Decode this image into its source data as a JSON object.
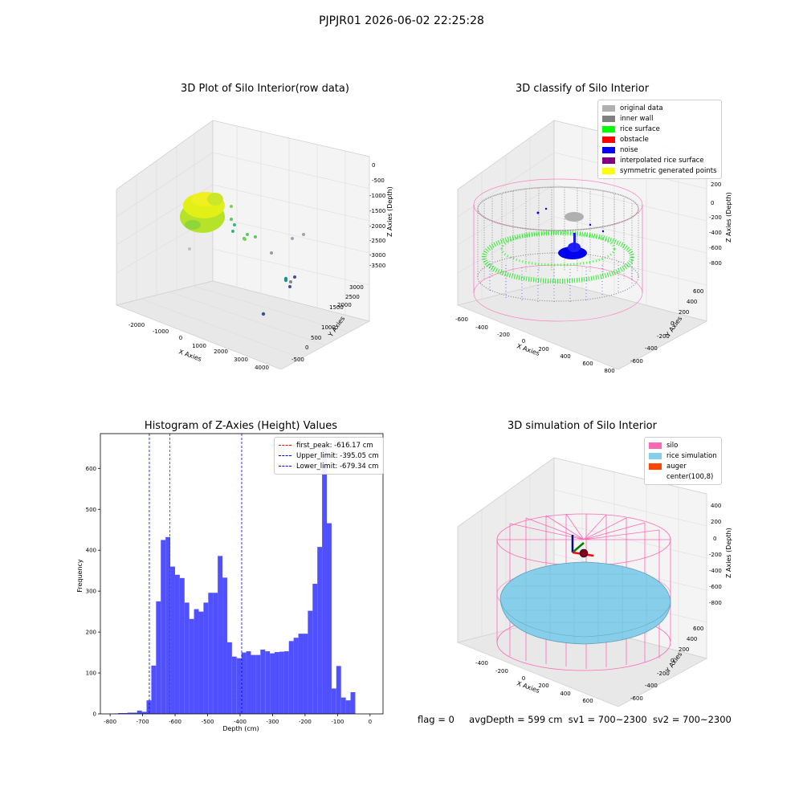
{
  "suptitle": "PJPJR01 2026-06-02 22:25:28",
  "panels": {
    "raw": {
      "title": "3D Plot of Silo Interior(row data)",
      "xlabel": "X Axies",
      "ylabel": "Y Axies",
      "zlabel": "Z Axies (Depth)",
      "xticks": [
        "-2000",
        "-1000",
        "0",
        "1000",
        "2000",
        "3000",
        "4000"
      ],
      "yticks": [
        "-500",
        "0",
        "500",
        "1000",
        "1500",
        "2000",
        "2500",
        "3000"
      ],
      "zticks": [
        "0",
        "-500",
        "-1000",
        "-1500",
        "-2000",
        "-2500",
        "-3000",
        "-3500"
      ]
    },
    "classify": {
      "title": "3D classify of Silo Interior",
      "xlabel": "X Axies",
      "ylabel": "Y Axies",
      "zlabel": "Z Axies (Depth)",
      "xticks": [
        "-600",
        "-400",
        "-200",
        "0",
        "200",
        "400",
        "600",
        "800"
      ],
      "yticks": [
        "-600",
        "-400",
        "-200",
        "0",
        "200",
        "400",
        "600"
      ],
      "zticks": [
        "200",
        "0",
        "-200",
        "-400",
        "-600",
        "-800"
      ],
      "legend": [
        {
          "label": "original data",
          "color": "#b0b0b0"
        },
        {
          "label": "inner wall",
          "color": "#808080"
        },
        {
          "label": "rice surface",
          "color": "#00ff00"
        },
        {
          "label": "obstacle",
          "color": "#ff0000"
        },
        {
          "label": "noise",
          "color": "#0000ff"
        },
        {
          "label": "interpolated rice surface",
          "color": "#800080"
        },
        {
          "label": "symmetric generated points",
          "color": "#ffff00"
        }
      ]
    },
    "simulation": {
      "title": "3D simulation of Silo Interior",
      "xlabel": "X Axies",
      "ylabel": "Y Axies",
      "zlabel": "Z Axies (Depth)",
      "xticks": [
        "-400",
        "-200",
        "0",
        "200",
        "400",
        "600"
      ],
      "yticks": [
        "-600",
        "-400",
        "-200",
        "0",
        "200",
        "400",
        "600"
      ],
      "zticks": [
        "400",
        "200",
        "0",
        "-200",
        "-400",
        "-600",
        "-800"
      ],
      "legend": [
        {
          "label": "silo",
          "color": "#ff69b4"
        },
        {
          "label": "rice simulation",
          "color": "#87ceeb"
        },
        {
          "label": "auger",
          "color": "#ff4500"
        },
        {
          "label": "center(100,8)",
          "color": "#ffffff"
        }
      ]
    }
  },
  "chart_data": {
    "type": "bar",
    "title": "Histogram of Z-Axies (Height) Values",
    "xlabel": "Depth (cm)",
    "ylabel": "Frequency",
    "xlim": [
      -830,
      40
    ],
    "ylim": [
      0,
      685
    ],
    "xticks": [
      -800,
      -700,
      -600,
      -500,
      -400,
      -300,
      -200,
      -100,
      0
    ],
    "yticks": [
      0,
      100,
      200,
      300,
      400,
      500,
      600
    ],
    "bin_start": -790,
    "bin_width": 14.6,
    "counts": [
      1,
      2,
      2,
      3,
      3,
      8,
      5,
      33,
      118,
      275,
      425,
      432,
      360,
      340,
      332,
      272,
      232,
      256,
      250,
      272,
      296,
      296,
      386,
      333,
      175,
      140,
      136,
      150,
      153,
      144,
      144,
      157,
      153,
      148,
      151,
      152,
      153,
      178,
      186,
      196,
      196,
      252,
      318,
      408,
      650,
      466,
      62,
      117,
      40,
      33,
      53
    ],
    "bar_color": "#5050ff",
    "lines": [
      {
        "label": "first_peak: -616.17 cm",
        "x": -616.17,
        "color": "#ff0000"
      },
      {
        "label": "Upper_limit: -395.05 cm",
        "x": -395.05,
        "color": "#0000ff"
      },
      {
        "label": "Lower_limit: -679.34 cm",
        "x": -679.34,
        "color": "#0000ff"
      }
    ],
    "legend_position": "upper right"
  },
  "footer": {
    "flag": "flag = 0",
    "avg": "avgDepth = 599 cm",
    "sv1": "sv1 = 700~2300",
    "sv2": "sv2 = 700~2300"
  }
}
